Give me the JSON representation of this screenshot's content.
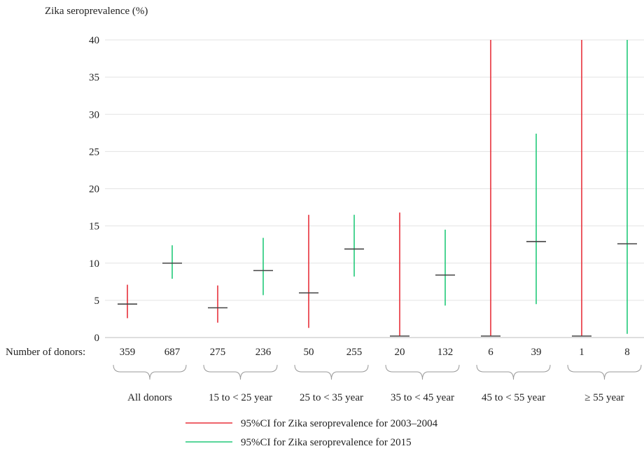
{
  "chart_data": {
    "type": "errorbar",
    "ylabel": "Zika seroprevalence (%)",
    "ylim": [
      0,
      40
    ],
    "yticks": [
      "0",
      "5",
      "10",
      "15",
      "20",
      "25",
      "30",
      "35",
      "40"
    ],
    "grid": true,
    "donors_label": "Number of donors:",
    "colors": {
      "2003-2004": "#e8303a",
      "2015": "#22c97a",
      "estimate": "#444444"
    },
    "groups": [
      {
        "label": "All donors",
        "points": [
          {
            "series": "2003-2004",
            "n": "359",
            "est": 4.5,
            "low": 2.6,
            "high": 7.1
          },
          {
            "series": "2015",
            "n": "687",
            "est": 10.0,
            "low": 7.9,
            "high": 12.4
          }
        ]
      },
      {
        "label": "15 to < 25 year",
        "points": [
          {
            "series": "2003-2004",
            "n": "275",
            "est": 4.0,
            "low": 2.0,
            "high": 7.0
          },
          {
            "series": "2015",
            "n": "236",
            "est": 9.0,
            "low": 5.7,
            "high": 13.4
          }
        ]
      },
      {
        "label": "25 to < 35 year",
        "points": [
          {
            "series": "2003-2004",
            "n": "50",
            "est": 6.0,
            "low": 1.3,
            "high": 16.5
          },
          {
            "series": "2015",
            "n": "255",
            "est": 11.9,
            "low": 8.2,
            "high": 16.5
          }
        ]
      },
      {
        "label": "35 to < 45 year",
        "points": [
          {
            "series": "2003-2004",
            "n": "20",
            "est": 0.2,
            "low": 0.2,
            "high": 16.8
          },
          {
            "series": "2015",
            "n": "132",
            "est": 8.4,
            "low": 4.3,
            "high": 14.5
          }
        ]
      },
      {
        "label": "45 to < 55 year",
        "points": [
          {
            "series": "2003-2004",
            "n": "6",
            "est": 0.2,
            "low": 0.2,
            "high": 40
          },
          {
            "series": "2015",
            "n": "39",
            "est": 12.9,
            "low": 4.5,
            "high": 27.4
          }
        ]
      },
      {
        "label": "≥ 55 year",
        "points": [
          {
            "series": "2003-2004",
            "n": "1",
            "est": 0.2,
            "low": 0.2,
            "high": 40
          },
          {
            "series": "2015",
            "n": "8",
            "est": 12.6,
            "low": 0.5,
            "high": 40
          }
        ]
      }
    ],
    "legend": [
      {
        "series": "2003-2004",
        "label": "95%CI for Zika seroprevalence for 2003–2004"
      },
      {
        "series": "2015",
        "label": "95%CI for Zika seroprevalence for 2015"
      }
    ]
  }
}
